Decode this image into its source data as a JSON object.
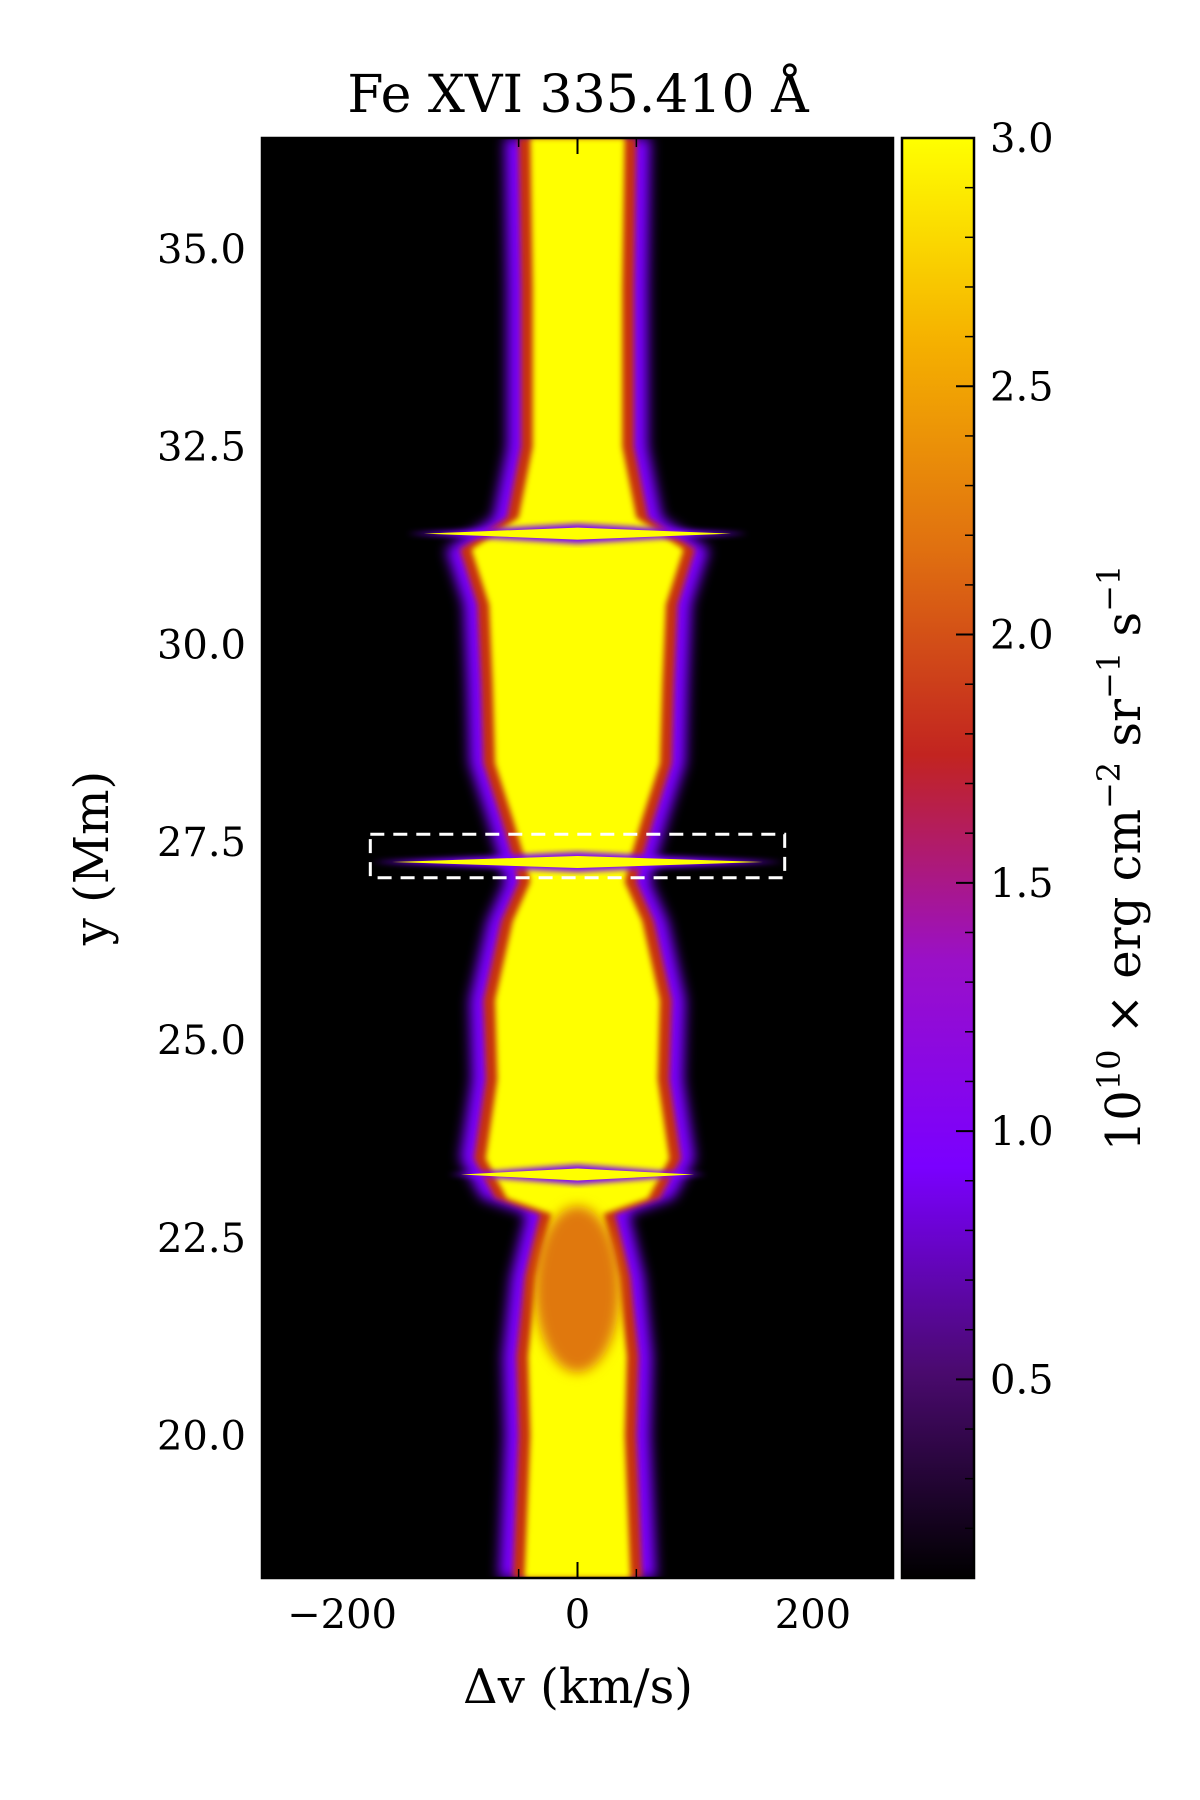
{
  "chart_data": {
    "type": "heatmap",
    "title": "Fe XVI 335.410 Å",
    "xlabel": "Δv (km/s)",
    "ylabel": "y (Mm)",
    "xlim": [
      -268,
      268
    ],
    "ylim": [
      18.2,
      36.4
    ],
    "xticks": [
      -200,
      0,
      200
    ],
    "xtick_labels": [
      "−200",
      "0",
      "200"
    ],
    "yticks": [
      20.0,
      22.5,
      25.0,
      27.5,
      30.0,
      32.5,
      35.0
    ],
    "ytick_labels": [
      "20.0",
      "22.5",
      "25.0",
      "27.5",
      "30.0",
      "32.5",
      "35.0"
    ],
    "colorbar": {
      "label": "10^10 × erg cm^−2 sr^−1 s^−1",
      "label_base": "10",
      "label_exp": "10",
      "label_mid": " × erg cm",
      "label_exp2": "−2",
      "label_sr": " sr",
      "label_exp3": "−1",
      "label_s": " s",
      "label_exp4": "−1",
      "vmin": 0.1,
      "vmax": 3.0,
      "ticks": [
        0.5,
        1.0,
        1.5,
        2.0,
        2.5,
        3.0
      ],
      "tick_labels": [
        "0.5",
        "1.0",
        "1.5",
        "2.0",
        "2.5",
        "3.0"
      ],
      "colormap": "gnuplot",
      "colors": [
        "#000000",
        "#4a0a6e",
        "#7a00ff",
        "#9a10c8",
        "#c22420",
        "#e07010",
        "#f5b000",
        "#ffff00"
      ]
    },
    "highlight_box": {
      "x_range": [
        -176,
        176
      ],
      "y_range": [
        27.05,
        27.6
      ],
      "style": "dashed",
      "color": "#ffffff"
    },
    "profile_core_halfwidth": [
      [
        18.2,
        45
      ],
      [
        20.0,
        40
      ],
      [
        21.0,
        42
      ],
      [
        22.0,
        35
      ],
      [
        22.8,
        22
      ],
      [
        23.0,
        60
      ],
      [
        23.5,
        78
      ],
      [
        24.5,
        68
      ],
      [
        25.5,
        70
      ],
      [
        26.5,
        55
      ],
      [
        27.0,
        40
      ],
      [
        27.3,
        45
      ],
      [
        27.8,
        55
      ],
      [
        28.5,
        70
      ],
      [
        29.5,
        72
      ],
      [
        30.5,
        75
      ],
      [
        31.2,
        90
      ],
      [
        31.6,
        50
      ],
      [
        32.5,
        38
      ],
      [
        34.5,
        38
      ],
      [
        36.4,
        40
      ]
    ],
    "emission_bursts": [
      {
        "y": 23.3,
        "halfwidth_kms": 110
      },
      {
        "y": 27.25,
        "halfwidth_kms": 175
      },
      {
        "y": 31.4,
        "halfwidth_kms": 145
      }
    ]
  }
}
